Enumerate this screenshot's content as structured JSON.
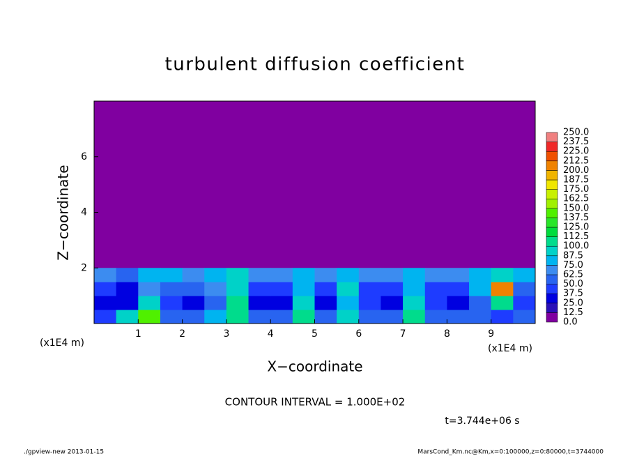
{
  "chart_data": {
    "type": "heatmap",
    "title": "turbulent diffusion coefficient",
    "xlabel": "X−coordinate",
    "ylabel": "Z−coordinate",
    "x_unit_left": "(x1E4 m)",
    "x_unit_right": "(x1E4 m)",
    "xlim": [
      0,
      10
    ],
    "ylim": [
      0,
      8
    ],
    "xticks": [
      1,
      2,
      3,
      4,
      5,
      6,
      7,
      8,
      9
    ],
    "yticks": [
      2,
      4,
      6
    ],
    "x": [
      0.25,
      0.75,
      1.25,
      1.75,
      2.25,
      2.75,
      3.25,
      3.75,
      4.25,
      4.75,
      5.25,
      5.75,
      6.25,
      6.75,
      7.25,
      7.75,
      8.25,
      8.75,
      9.25,
      9.75
    ],
    "y": [
      0.25,
      0.75,
      1.25,
      1.75
    ],
    "values": [
      [
        40,
        90,
        140,
        60,
        50,
        80,
        110,
        60,
        50,
        100,
        50,
        90,
        60,
        50,
        110,
        60,
        50,
        60,
        40,
        50
      ],
      [
        30,
        25,
        90,
        45,
        35,
        60,
        100,
        35,
        30,
        90,
        35,
        85,
        45,
        35,
        95,
        45,
        35,
        60,
        100,
        40
      ],
      [
        40,
        30,
        70,
        55,
        50,
        70,
        95,
        40,
        40,
        80,
        45,
        90,
        40,
        40,
        75,
        45,
        45,
        80,
        200,
        60
      ],
      [
        70,
        60,
        80,
        75,
        70,
        80,
        95,
        70,
        70,
        85,
        65,
        85,
        70,
        70,
        80,
        70,
        70,
        75,
        90,
        80
      ]
    ],
    "colorbar": {
      "levels": [
        {
          "value": 0,
          "label": "0.0"
        },
        12.5,
        {
          "value": 25,
          "label": "25.0"
        },
        37.5,
        {
          "value": 50,
          "label": "50.0"
        },
        62.5,
        {
          "value": 75,
          "label": "75.0"
        },
        87.5,
        {
          "value": 100,
          "label": "100.0"
        },
        112.5,
        {
          "value": 125,
          "label": "125.0"
        },
        137.5,
        {
          "value": 150,
          "label": "150.0"
        },
        162.5,
        {
          "value": 175,
          "label": "175.0"
        },
        187.5,
        {
          "value": 200,
          "label": "200.0"
        },
        212.5,
        {
          "value": 225,
          "label": "225.0"
        },
        237.5,
        {
          "value": 250,
          "label": "250.0"
        }
      ],
      "colors": [
        "#8000a0",
        "#2a10b8",
        "#0000e0",
        "#1e3cff",
        "#2864f0",
        "#3c8cf0",
        "#00b4f0",
        "#00d2c8",
        "#00dc8c",
        "#00dc3c",
        "#28e628",
        "#50f000",
        "#a0f000",
        "#c8f000",
        "#f0e600",
        "#f0b400",
        "#f08200",
        "#f05000",
        "#f02828",
        "#f08080"
      ]
    },
    "contour_interval": "CONTOUR INTERVAL = 1.000E+02",
    "time": "t=3.744e+06 s",
    "footer_left": "./gpview-new  2013-01-15",
    "footer_right": "MarsCond_Km.nc@Km,x=0:100000,z=0:80000,t=3744000"
  }
}
